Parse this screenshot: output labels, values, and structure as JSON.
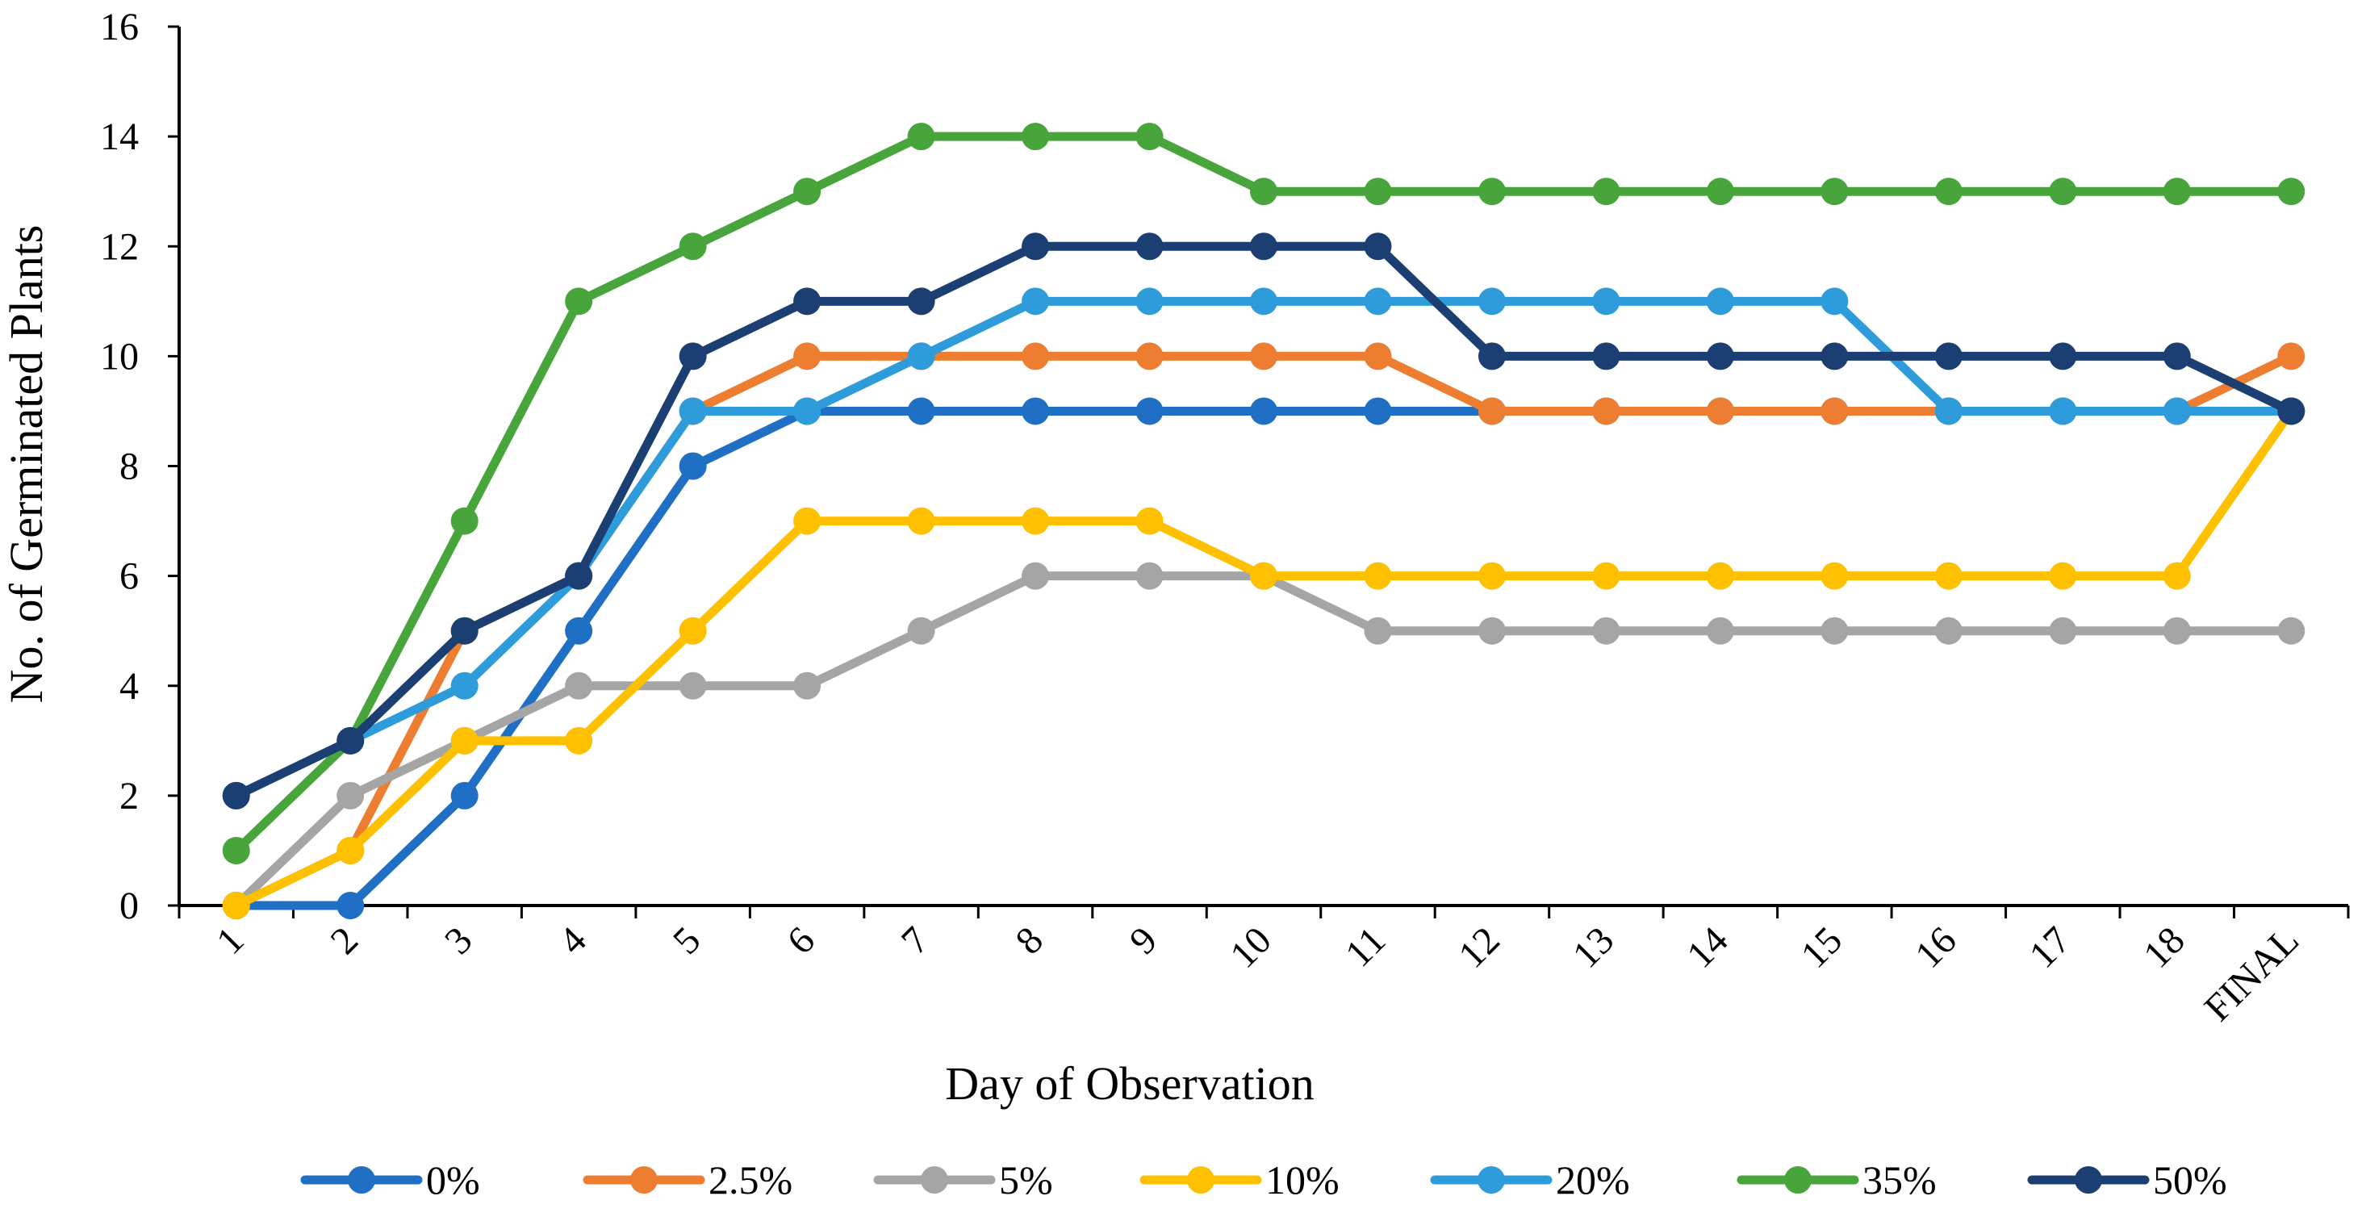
{
  "chart_data": {
    "type": "line",
    "title": "",
    "xlabel": "Day of Observation",
    "ylabel": "No. of Germinated Plants",
    "categories": [
      "1",
      "2",
      "3",
      "4",
      "5",
      "6",
      "7",
      "8",
      "9",
      "10",
      "11",
      "12",
      "13",
      "14",
      "15",
      "16",
      "17",
      "18",
      "FINAL"
    ],
    "ylim": [
      0,
      16
    ],
    "yticks": [
      0,
      2,
      4,
      6,
      8,
      10,
      12,
      14,
      16
    ],
    "grid": false,
    "legend_position": "bottom",
    "series": [
      {
        "name": "0%",
        "color": "#1F6FC5",
        "values": [
          0,
          0,
          2,
          5,
          8,
          9,
          9,
          9,
          9,
          9,
          9,
          9,
          9,
          9,
          9,
          9,
          9,
          9,
          9
        ]
      },
      {
        "name": "2.5%",
        "color": "#ED7D31",
        "values": [
          0,
          1,
          5,
          6,
          9,
          10,
          10,
          10,
          10,
          10,
          10,
          9,
          9,
          9,
          9,
          9,
          9,
          9,
          10
        ]
      },
      {
        "name": "5%",
        "color": "#A5A5A5",
        "values": [
          0,
          2,
          3,
          4,
          4,
          4,
          5,
          6,
          6,
          6,
          5,
          5,
          5,
          5,
          5,
          5,
          5,
          5,
          5
        ]
      },
      {
        "name": "10%",
        "color": "#FFC000",
        "values": [
          0,
          1,
          3,
          3,
          5,
          7,
          7,
          7,
          7,
          6,
          6,
          6,
          6,
          6,
          6,
          6,
          6,
          6,
          9
        ]
      },
      {
        "name": "20%",
        "color": "#2E9BDA",
        "values": [
          2,
          3,
          4,
          6,
          9,
          9,
          10,
          11,
          11,
          11,
          11,
          11,
          11,
          11,
          11,
          9,
          9,
          9,
          9
        ]
      },
      {
        "name": "35%",
        "color": "#47A53B",
        "values": [
          1,
          3,
          7,
          11,
          12,
          13,
          14,
          14,
          14,
          13,
          13,
          13,
          13,
          13,
          13,
          13,
          13,
          13,
          13
        ]
      },
      {
        "name": "50%",
        "color": "#1B3F73",
        "values": [
          2,
          3,
          5,
          6,
          10,
          11,
          11,
          12,
          12,
          12,
          12,
          10,
          10,
          10,
          10,
          10,
          10,
          10,
          9
        ]
      }
    ]
  }
}
